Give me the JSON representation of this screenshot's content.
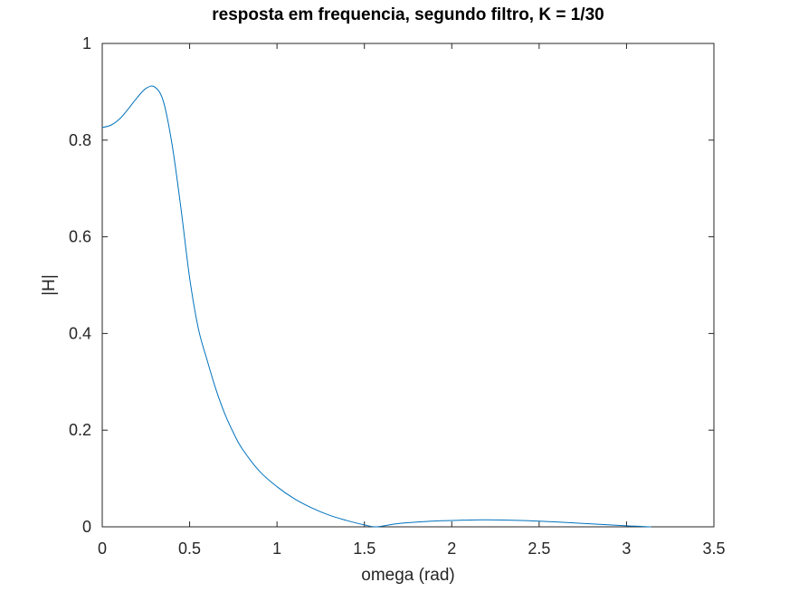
{
  "chart_data": {
    "type": "line",
    "title": "resposta em frequencia, segundo filtro, K = 1/30",
    "xlabel": "omega (rad)",
    "ylabel": "|H|",
    "xlim": [
      0,
      3.5
    ],
    "ylim": [
      0,
      1
    ],
    "xticks": [
      "0",
      "0.5",
      "1",
      "1.5",
      "2",
      "2.5",
      "3",
      "3.5"
    ],
    "yticks": [
      "0",
      "0.2",
      "0.4",
      "0.6",
      "0.8",
      "1"
    ],
    "grid": false,
    "legend": "none",
    "series": [
      {
        "color": "#0072BD",
        "x": [
          0,
          0.05,
          0.1,
          0.15,
          0.2,
          0.25,
          0.3,
          0.35,
          0.4,
          0.45,
          0.5,
          0.55,
          0.6,
          0.65,
          0.7,
          0.75,
          0.8,
          0.9,
          1.0,
          1.1,
          1.2,
          1.3,
          1.4,
          1.5,
          1.571,
          1.7,
          1.9,
          2.1,
          2.2,
          2.4,
          2.6,
          2.8,
          3.0,
          3.1416
        ],
        "y": [
          0.826,
          0.831,
          0.844,
          0.865,
          0.888,
          0.907,
          0.91,
          0.88,
          0.79,
          0.66,
          0.515,
          0.41,
          0.345,
          0.285,
          0.235,
          0.195,
          0.162,
          0.115,
          0.083,
          0.058,
          0.039,
          0.024,
          0.013,
          0.004,
          0.0,
          0.007,
          0.012,
          0.014,
          0.0145,
          0.013,
          0.01,
          0.006,
          0.002,
          0.0
        ]
      }
    ]
  }
}
